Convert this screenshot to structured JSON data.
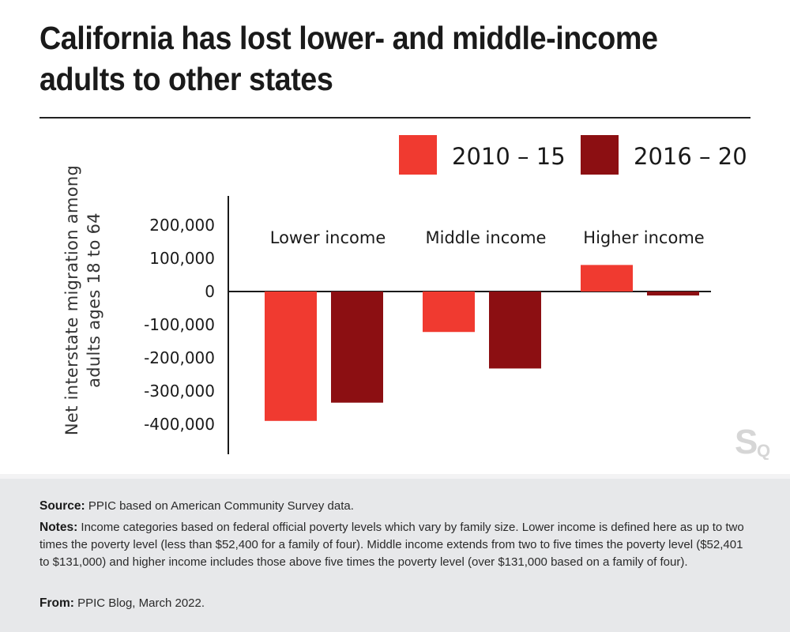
{
  "title": "California has lost lower- and middle-income adults to other states",
  "colors": {
    "period1": "#f03a30",
    "period2": "#8c0f12",
    "axis": "#1a1a1a",
    "footer_bg": "#e7e8ea"
  },
  "legend": [
    {
      "label": "2010 – 15",
      "color": "#f03a30"
    },
    {
      "label": "2016 – 20",
      "color": "#8c0f12"
    }
  ],
  "footer": {
    "source_label": "Source:",
    "source_text": "PPIC based on American Community Survey data.",
    "notes_label": "Notes:",
    "notes_text": "Income categories based on federal official poverty levels which vary by family size. Lower income is defined here as up to two times the poverty level (less than $52,400 for a family of four). Middle income extends from two to five times the poverty level ($52,401 to $131,000) and higher income includes those above five times the poverty level (over $131,000 based on a family of four).",
    "from_label": "From:",
    "from_text": "PPIC Blog, March 2022."
  },
  "logo_icon": "sq-logo-icon",
  "chart_data": {
    "type": "bar",
    "ylabel": "Net interstate migration among adults ages 18 to 64",
    "xlabel": "",
    "categories": [
      "Lower income",
      "Middle income",
      "Higher income"
    ],
    "series": [
      {
        "name": "2010 – 15",
        "color": "#f03a30",
        "values": [
          -390000,
          -122000,
          80000
        ]
      },
      {
        "name": "2016 – 20",
        "color": "#8c0f12",
        "values": [
          -335000,
          -232000,
          -12000
        ]
      }
    ],
    "yticks": [
      200000,
      100000,
      0,
      -100000,
      -200000,
      -300000,
      -400000
    ],
    "ytick_labels": [
      "200,000",
      "100,000",
      "0",
      "-100,000",
      "-200,000",
      "-300,000",
      "-400,000"
    ],
    "ylim": [
      -500000,
      290000
    ],
    "grid": false,
    "legend_position": "top-right"
  }
}
